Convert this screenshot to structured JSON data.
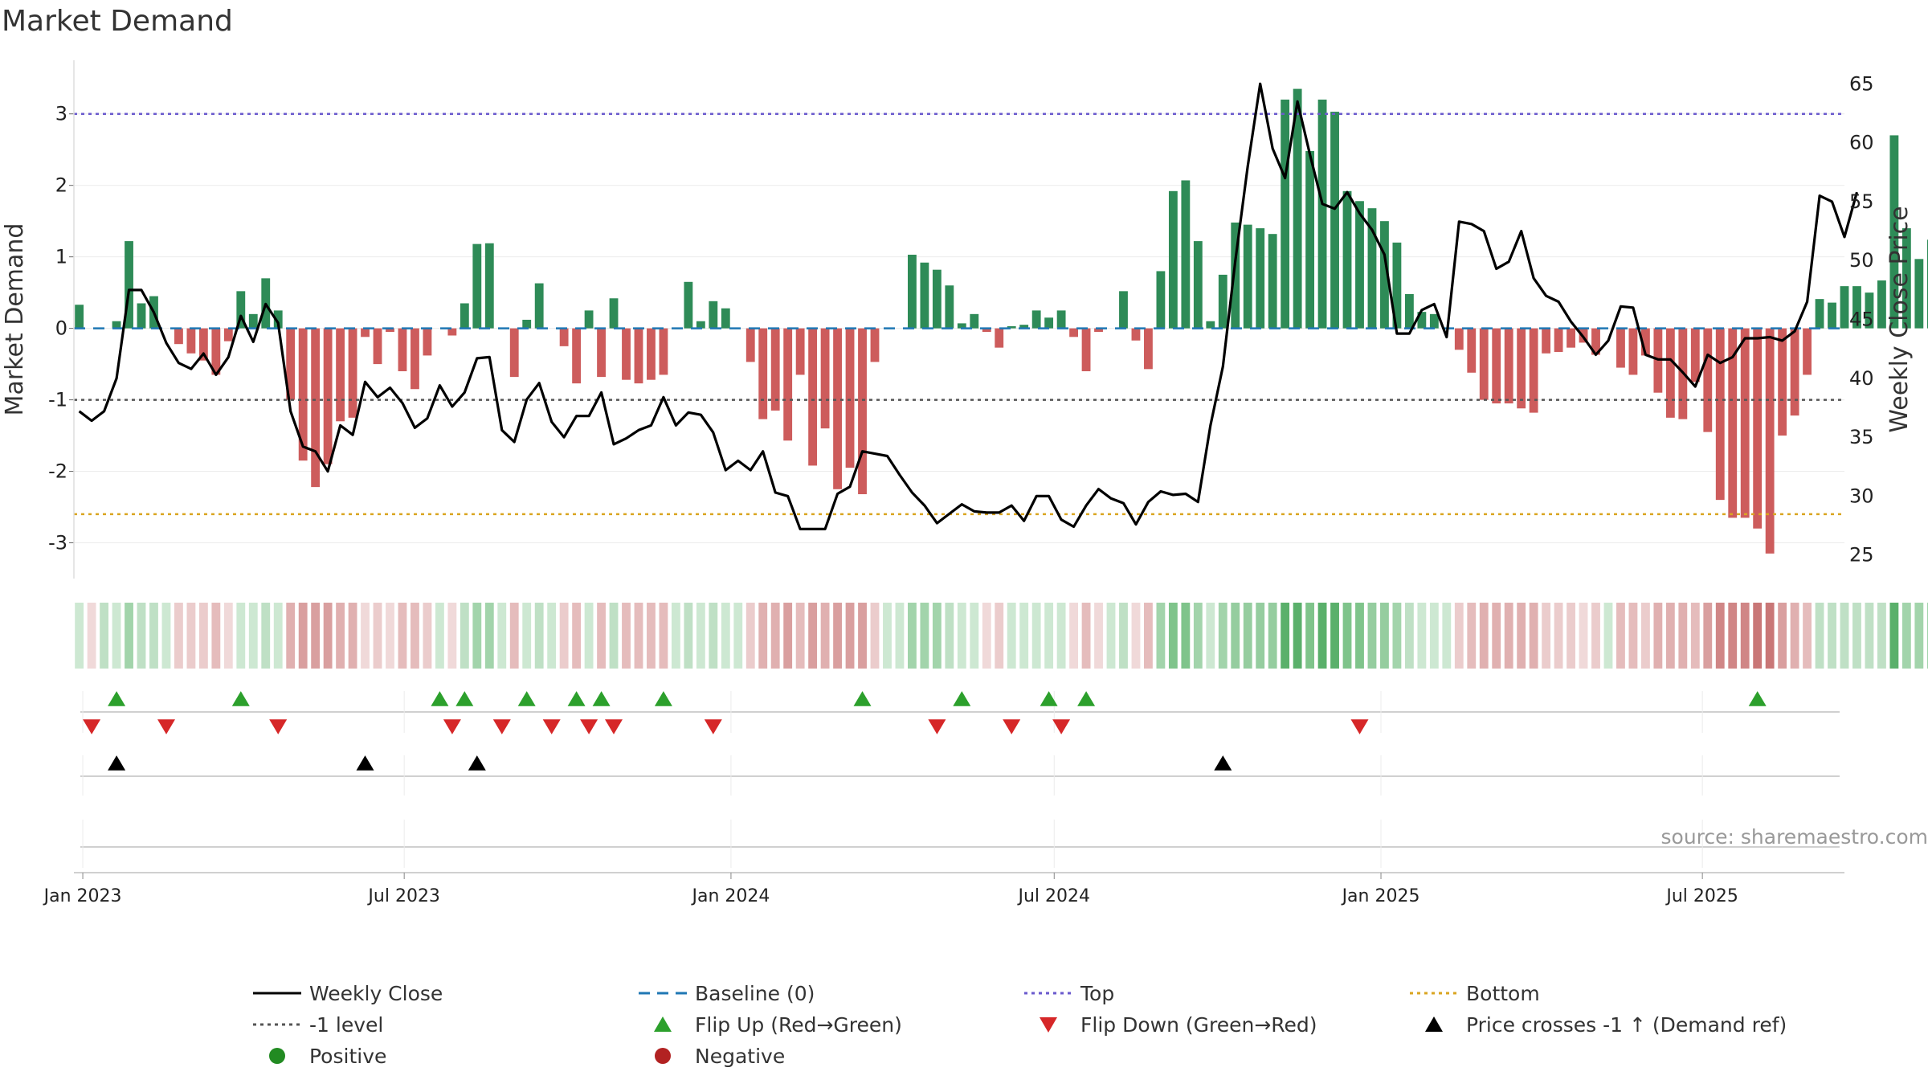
{
  "title": "Market Demand",
  "source": "source: sharemaestro.com",
  "chart_data": {
    "type": "bar",
    "y_left_label": "Market Demand",
    "y_right_label": "Weekly Close Price",
    "y_left_range": [
      -3.5,
      3.75
    ],
    "y_left_ticks": [
      3,
      2,
      1,
      0,
      -1,
      -2,
      -3
    ],
    "y_right_range": [
      23,
      67
    ],
    "y_right_ticks": [
      65,
      60,
      55,
      50,
      45,
      40,
      35,
      30,
      25
    ],
    "x_range": [
      "2022-12-27",
      "2025-09-19"
    ],
    "x_ticks": [
      {
        "date": "2023-01-01",
        "label": "Jan 2023"
      },
      {
        "date": "2023-07-01",
        "label": "Jul 2023"
      },
      {
        "date": "2024-01-01",
        "label": "Jan 2024"
      },
      {
        "date": "2024-07-01",
        "label": "Jul 2024"
      },
      {
        "date": "2025-01-01",
        "label": "Jan 2025"
      },
      {
        "date": "2025-07-01",
        "label": "Jul 2025"
      }
    ],
    "week_start": "2022-12-30",
    "reference_lines": {
      "top": 3.0,
      "minus_one": -1.0,
      "bottom": -2.6,
      "baseline": 0
    },
    "demand": [
      0.33,
      0.0,
      0.0,
      0.1,
      1.22,
      0.35,
      0.45,
      0.0,
      -0.22,
      -0.35,
      -0.45,
      -0.65,
      -0.18,
      0.52,
      0.2,
      0.7,
      0.25,
      -1.0,
      -1.85,
      -2.22,
      -1.9,
      -1.3,
      -1.25,
      -0.12,
      -0.5,
      -0.05,
      -0.6,
      -0.85,
      -0.38,
      0.0,
      -0.1,
      0.35,
      1.18,
      1.19,
      0.0,
      -0.68,
      0.12,
      0.63,
      0.0,
      -0.25,
      -0.77,
      0.25,
      -0.68,
      0.42,
      -0.72,
      -0.77,
      -0.72,
      -0.65,
      0.0,
      0.65,
      0.1,
      0.38,
      0.28,
      0.0,
      -0.47,
      -1.27,
      -1.15,
      -1.57,
      -0.65,
      -1.92,
      -1.4,
      -2.25,
      -1.95,
      -2.32,
      -0.47,
      0.0,
      0.0,
      1.03,
      0.92,
      0.82,
      0.6,
      0.07,
      0.2,
      -0.05,
      -0.27,
      0.03,
      0.05,
      0.25,
      0.15,
      0.25,
      -0.12,
      -0.6,
      -0.05,
      0.0,
      0.52,
      -0.17,
      -0.57,
      0.8,
      1.92,
      2.07,
      1.22,
      0.1,
      0.75,
      1.48,
      1.45,
      1.4,
      1.32,
      3.2,
      3.35,
      2.48,
      3.2,
      3.03,
      1.92,
      1.78,
      1.68,
      1.5,
      1.2,
      0.48,
      0.23,
      0.2,
      0.0,
      -0.3,
      -0.62,
      -1.0,
      -1.05,
      -1.05,
      -1.12,
      -1.18,
      -0.35,
      -0.33,
      -0.27,
      -0.2,
      -0.37,
      0.0,
      -0.55,
      -0.65,
      -0.38,
      -0.9,
      -1.25,
      -1.27,
      -0.75,
      -1.45,
      -2.4,
      -2.65,
      -2.65,
      -2.8,
      -3.15,
      -1.5,
      -1.22,
      -0.65,
      0.41,
      0.36,
      0.59,
      0.59,
      0.5,
      0.67,
      2.7,
      1.4,
      0.97,
      1.24
    ],
    "close": [
      37.2,
      36.4,
      37.2,
      40.0,
      47.5,
      47.5,
      45.6,
      43.0,
      41.3,
      40.8,
      42.1,
      40.3,
      41.8,
      45.3,
      43.1,
      46.3,
      44.7,
      37.2,
      34.2,
      33.8,
      32.1,
      36.0,
      35.2,
      39.7,
      38.4,
      39.2,
      37.9,
      35.8,
      36.6,
      39.4,
      37.6,
      38.8,
      41.7,
      41.8,
      35.6,
      34.6,
      38.2,
      39.6,
      36.3,
      35.0,
      36.8,
      36.8,
      38.8,
      34.4,
      34.9,
      35.6,
      36.0,
      38.4,
      36.0,
      37.1,
      36.9,
      35.4,
      32.2,
      33.0,
      32.2,
      33.8,
      30.3,
      30.0,
      27.2,
      27.2,
      27.2,
      30.2,
      30.8,
      33.8,
      33.6,
      33.4,
      31.8,
      30.3,
      29.2,
      27.7,
      28.5,
      29.3,
      28.7,
      28.6,
      28.6,
      29.2,
      27.9,
      30.0,
      30.0,
      28.0,
      27.4,
      29.2,
      30.6,
      29.8,
      29.4,
      27.6,
      29.5,
      30.4,
      30.1,
      30.2,
      29.5,
      36.0,
      41.0,
      50.0,
      58.0,
      65.0,
      59.5,
      57.0,
      63.5,
      59.0,
      54.8,
      54.4,
      55.8,
      54.0,
      52.6,
      50.5,
      43.8,
      43.8,
      45.8,
      46.3,
      43.5,
      53.3,
      53.1,
      52.5,
      49.3,
      49.9,
      52.5,
      48.5,
      47.0,
      46.5,
      44.8,
      43.5,
      42.0,
      43.2,
      46.1,
      46.0,
      42.0,
      41.6,
      41.6,
      40.5,
      39.3,
      42.0,
      41.3,
      41.8,
      43.4,
      43.4,
      43.5,
      43.2,
      44.0,
      46.5,
      55.5,
      55.0,
      52.0,
      55.8
    ],
    "intensity_colors": [
      "#cde8d2",
      "#f0d9d9",
      "#bfe0c5",
      "#cde8d2",
      "#a2d4ab",
      "#bfe0c5",
      "#bfe0c5",
      "#cde8d2",
      "#ebcccc",
      "#ebcccc",
      "#ebcccc",
      "#e5bcbc",
      "#f0d9d9",
      "#cde8d2",
      "#cde8d2",
      "#bfe0c5",
      "#cde8d2",
      "#e0b0b0",
      "#d99f9f",
      "#d99f9f",
      "#d99f9f",
      "#e0b0b0",
      "#e0b0b0",
      "#f0d9d9",
      "#ebcccc",
      "#f0d9d9",
      "#e5bcbc",
      "#e5bcbc",
      "#ebcccc",
      "#cde8d2",
      "#f0d9d9",
      "#bfe0c5",
      "#a2d4ab",
      "#a2d4ab",
      "#cde8d2",
      "#e5bcbc",
      "#cde8d2",
      "#bfe0c5",
      "#cde8d2",
      "#ebcccc",
      "#e5bcbc",
      "#cde8d2",
      "#e5bcbc",
      "#bfe0c5",
      "#e5bcbc",
      "#e5bcbc",
      "#e5bcbc",
      "#e5bcbc",
      "#cde8d2",
      "#bfe0c5",
      "#cde8d2",
      "#bfe0c5",
      "#cde8d2",
      "#cde8d2",
      "#ebcccc",
      "#e0b0b0",
      "#e0b0b0",
      "#d99f9f",
      "#e5bcbc",
      "#d99f9f",
      "#e0b0b0",
      "#d99f9f",
      "#d99f9f",
      "#d99f9f",
      "#ebcccc",
      "#cde8d2",
      "#cde8d2",
      "#a2d4ab",
      "#a2d4ab",
      "#a2d4ab",
      "#bfe0c5",
      "#cde8d2",
      "#cde8d2",
      "#f0d9d9",
      "#ebcccc",
      "#cde8d2",
      "#cde8d2",
      "#cde8d2",
      "#cde8d2",
      "#cde8d2",
      "#f0d9d9",
      "#e5bcbc",
      "#f0d9d9",
      "#cde8d2",
      "#bfe0c5",
      "#f0d9d9",
      "#e5bcbc",
      "#a2d4ab",
      "#7fc48b",
      "#7fc48b",
      "#a2d4ab",
      "#cde8d2",
      "#a2d4ab",
      "#95cd9f",
      "#95cd9f",
      "#95cd9f",
      "#95cd9f",
      "#5ab06b",
      "#5ab06b",
      "#7fc48b",
      "#5ab06b",
      "#5ab06b",
      "#7fc48b",
      "#7fc48b",
      "#95cd9f",
      "#95cd9f",
      "#a2d4ab",
      "#bfe0c5",
      "#cde8d2",
      "#cde8d2",
      "#cde8d2",
      "#ebcccc",
      "#e5bcbc",
      "#e0b0b0",
      "#e0b0b0",
      "#e0b0b0",
      "#e0b0b0",
      "#e0b0b0",
      "#ebcccc",
      "#ebcccc",
      "#ebcccc",
      "#f0d9d9",
      "#ebcccc",
      "#cde8d2",
      "#e5bcbc",
      "#e5bcbc",
      "#ebcccc",
      "#e0b0b0",
      "#e0b0b0",
      "#e0b0b0",
      "#e5bcbc",
      "#d99f9f",
      "#d08686",
      "#d08686",
      "#d08686",
      "#c97777",
      "#c97777",
      "#d99f9f",
      "#e0b0b0",
      "#e5bcbc",
      "#bfe0c5",
      "#bfe0c5",
      "#bfe0c5",
      "#bfe0c5",
      "#bfe0c5",
      "#bfe0c5",
      "#5ab06b",
      "#a2d4ab",
      "#a2d4ab",
      "#a2d4ab"
    ],
    "flip_up_weeks": [
      3,
      13,
      29,
      31,
      36,
      40,
      42,
      47,
      63,
      71,
      78,
      81,
      135
    ],
    "flip_down_weeks": [
      1,
      7,
      16,
      30,
      34,
      38,
      41,
      43,
      51,
      69,
      75,
      79,
      103
    ],
    "price_cross_weeks": [
      3,
      23,
      32,
      92
    ],
    "colors": {
      "positive": "#2e8b57",
      "negative": "#cd5c5c",
      "close": "#000000",
      "baseline": "#1f77b4",
      "top": "#6a5acd",
      "minus_one": "#555555",
      "bottom": "#daa520",
      "flip_up": "#2ca02c",
      "flip_down": "#d62728",
      "cross": "#000000"
    },
    "legend": [
      {
        "label": "Weekly Close",
        "marker": "line",
        "color": "#000000"
      },
      {
        "label": "Baseline (0)",
        "marker": "dash",
        "color": "#1f77b4"
      },
      {
        "label": "Top",
        "marker": "dot",
        "color": "#6a5acd"
      },
      {
        "label": "Bottom",
        "marker": "dot",
        "color": "#daa520"
      },
      {
        "label": "-1 level",
        "marker": "dot",
        "color": "#555555"
      },
      {
        "label": "Flip Up (Red→Green)",
        "marker": "triangle-up",
        "color": "#2ca02c"
      },
      {
        "label": "Flip Down (Green→Red)",
        "marker": "triangle-down",
        "color": "#d62728"
      },
      {
        "label": "Price crosses -1 ↑ (Demand ref)",
        "marker": "triangle-up",
        "color": "#000000"
      },
      {
        "label": "Positive",
        "marker": "circle",
        "color": "#228b22"
      },
      {
        "label": "Negative",
        "marker": "circle",
        "color": "#b22222"
      }
    ]
  }
}
